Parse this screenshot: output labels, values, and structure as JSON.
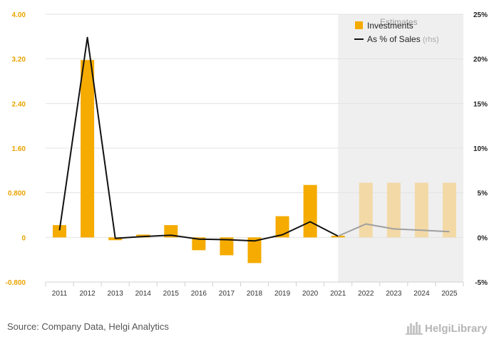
{
  "chart_data": {
    "type": "bar+line",
    "categories": [
      "2011",
      "2012",
      "2013",
      "2014",
      "2015",
      "2016",
      "2017",
      "2018",
      "2019",
      "2020",
      "2021",
      "2022",
      "2023",
      "2024",
      "2025"
    ],
    "series": [
      {
        "name": "Investments",
        "type": "bar",
        "axis": "left",
        "values": [
          0.22,
          3.18,
          -0.05,
          0.05,
          0.22,
          -0.23,
          -0.32,
          -0.46,
          0.38,
          0.94,
          0.03,
          0.98,
          0.98,
          0.98,
          0.98
        ]
      },
      {
        "name": "As % of Sales",
        "axis_note": "(rhs)",
        "type": "line",
        "axis": "right",
        "values": [
          0.8,
          22.4,
          -0.1,
          0.1,
          0.25,
          -0.2,
          -0.25,
          -0.4,
          0.3,
          1.75,
          0.15,
          1.5,
          0.95,
          0.8,
          0.65
        ]
      }
    ],
    "estimate_start_index": 11,
    "estimate_label": "Estimates",
    "left_axis": {
      "ylim": [
        -0.8,
        4.0
      ],
      "ticks": [
        -0.8,
        0,
        0.8,
        1.6,
        2.4,
        3.2,
        4.0
      ],
      "tick_labels": [
        "-0.800",
        "0",
        "0.800",
        "1.60",
        "2.40",
        "3.20",
        "4.00"
      ]
    },
    "right_axis": {
      "ylim": [
        -5,
        25
      ],
      "ticks": [
        -5,
        0,
        5,
        10,
        15,
        20,
        25
      ],
      "tick_labels": [
        "-5%",
        "0%",
        "5%",
        "10%",
        "15%",
        "20%",
        "25%"
      ]
    },
    "legend_placement": "top-right",
    "grid": true,
    "colors": {
      "bar": "#f5ab00",
      "bar_estimate": "#f3d9a6",
      "line": "#111111",
      "line_estimate": "#a0a0a0",
      "estimate_band": "#efefef"
    }
  },
  "footer": {
    "source": "Source: Company Data, Helgi Analytics",
    "logo_text": "HelgiLibrary"
  }
}
